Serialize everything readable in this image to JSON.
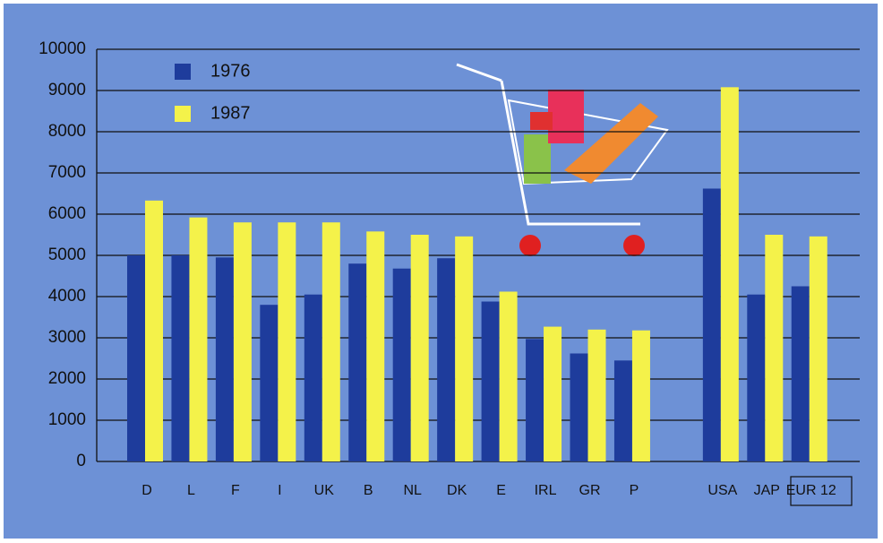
{
  "chart_data": {
    "type": "bar",
    "categories": [
      "D",
      "L",
      "F",
      "I",
      "UK",
      "B",
      "NL",
      "DK",
      "E",
      "IRL",
      "GR",
      "P",
      null,
      "USA",
      "JAP",
      "EUR 12"
    ],
    "series": [
      {
        "name": "1976",
        "color": "#1e3c9c",
        "values": [
          5000,
          5000,
          4950,
          3800,
          4050,
          4800,
          4680,
          4930,
          3880,
          2970,
          2620,
          2450,
          null,
          6620,
          4050,
          4250
        ]
      },
      {
        "name": "1987",
        "color": "#f4f24a",
        "values": [
          6330,
          5920,
          5800,
          5800,
          5800,
          5580,
          5500,
          5460,
          4120,
          3270,
          3200,
          3180,
          null,
          9080,
          5500,
          5460
        ]
      }
    ],
    "ylim": [
      0,
      10000
    ],
    "yticks": [
      0,
      1000,
      2000,
      3000,
      4000,
      5000,
      6000,
      7000,
      8000,
      9000,
      10000
    ],
    "grid": true,
    "legend": "top-left"
  }
}
